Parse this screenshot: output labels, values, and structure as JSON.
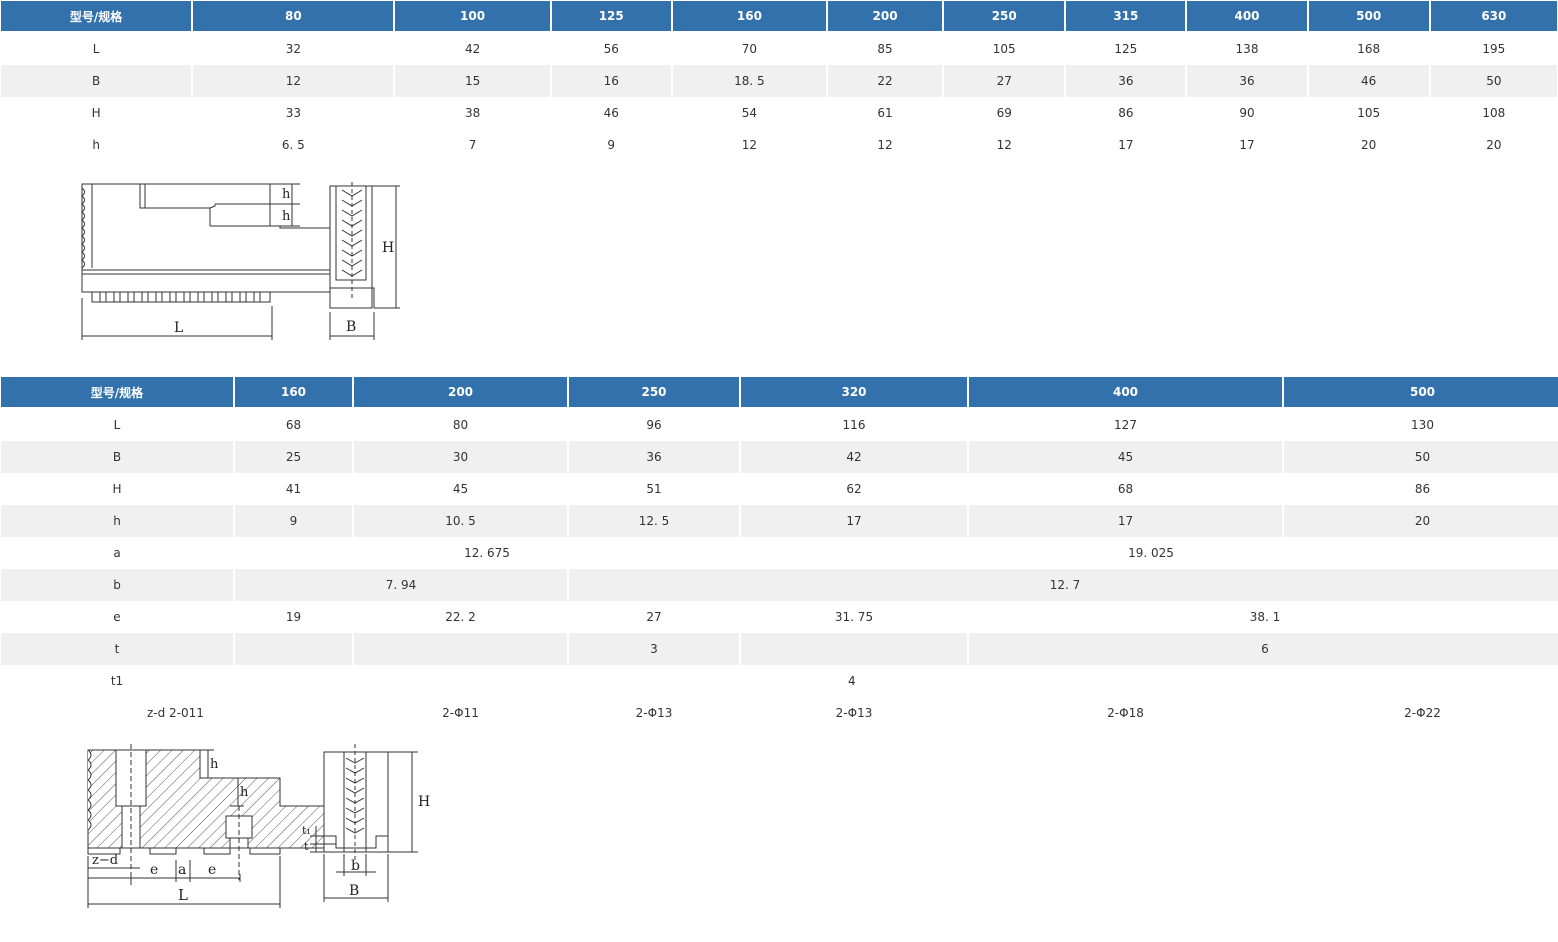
{
  "table1": {
    "header": [
      "型号/规格",
      "80",
      "100",
      "125",
      "160",
      "200",
      "250",
      "315",
      "400",
      "500",
      "630"
    ],
    "rows": [
      [
        "L",
        "32",
        "42",
        "56",
        "70",
        "85",
        "105",
        "125",
        "138",
        "168",
        "195"
      ],
      [
        "B",
        "12",
        "15",
        "16",
        "18. 5",
        "22",
        "27",
        "36",
        "36",
        "46",
        "50"
      ],
      [
        "H",
        "33",
        "38",
        "46",
        "54",
        "61",
        "69",
        "86",
        "90",
        "105",
        "108"
      ],
      [
        "h",
        "6. 5",
        "7",
        "9",
        "12",
        "12",
        "12",
        "17",
        "17",
        "20",
        "20"
      ]
    ]
  },
  "table2": {
    "header": [
      "型号/规格",
      "160",
      "200",
      "250",
      "320",
      "400",
      "500"
    ],
    "rows": {
      "L": [
        "L",
        "68",
        "80",
        "96",
        "116",
        "127",
        "130"
      ],
      "B": [
        "B",
        "25",
        "30",
        "36",
        "42",
        "45",
        "50"
      ],
      "H": [
        "H",
        "41",
        "45",
        "51",
        "62",
        "68",
        "86"
      ],
      "h": [
        "h",
        "9",
        "10. 5",
        "12. 5",
        "17",
        "17",
        "20"
      ],
      "a": [
        "a",
        "12. 675",
        "19. 025"
      ],
      "b": [
        "b",
        "7. 94",
        "12. 7"
      ],
      "e": [
        "e",
        "19",
        "22. 2",
        "27",
        "31. 75",
        "38. 1"
      ],
      "t": [
        "t",
        "3",
        "6"
      ],
      "t1": [
        "t1",
        "4"
      ],
      "zd": [
        "z-d 2-011",
        "2-Φ11",
        "2-Φ13",
        "2-Φ13",
        "2-Φ18",
        "2-Φ22"
      ]
    }
  },
  "diagram1": {
    "labels": {
      "h_top": "h",
      "h_mid": "h",
      "L": "L",
      "B": "B",
      "H": "H"
    }
  },
  "diagram2": {
    "labels": {
      "h_top": "h",
      "h_mid": "h",
      "zd": "z−d",
      "e_left": "e",
      "a": "a",
      "e_right": "e",
      "L": "L",
      "t1": "t₁",
      "t": "t",
      "b": "b",
      "B": "B",
      "H": "H"
    }
  },
  "colors": {
    "header_bg": "#3271ac",
    "header_text": "#ffffff",
    "alt_row_bg": "#f0f0f0"
  }
}
